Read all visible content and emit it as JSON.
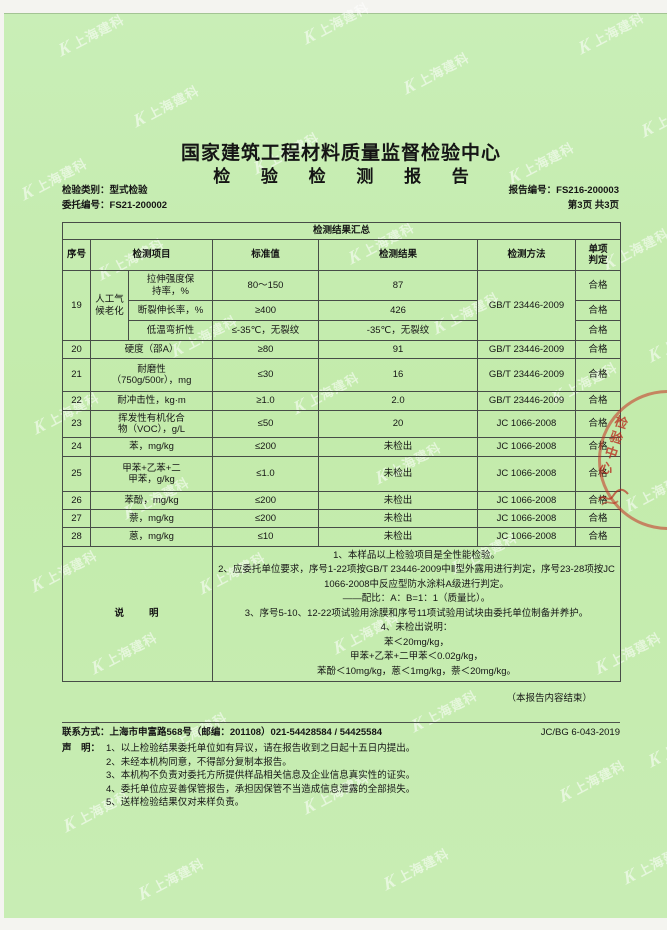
{
  "watermark": {
    "logo": "K",
    "text": "上海建科"
  },
  "header": {
    "org": "国家建筑工程材料质量监督检验中心",
    "doc_title": "检 验 检 测 报 告",
    "category_label": "检验类别：",
    "category": "型式检验",
    "client_no_label": "委托编号：",
    "client_no": "FS21-200002",
    "report_no_label": "报告编号：",
    "report_no": "FS216-200003",
    "page": "第3页 共3页"
  },
  "table": {
    "title": "检测结果汇总",
    "columns": [
      "序号",
      "检测项目",
      "标准值",
      "检测结果",
      "检测方法",
      "单项\n判定"
    ],
    "rows": [
      {
        "no": "19",
        "group": "人工气\n候老化",
        "item": "拉伸强度保\n持率，%",
        "std": "80～150",
        "res": "87",
        "method": "GB/T 23446-2009",
        "judge": "合格"
      },
      {
        "item": "断裂伸长率，%",
        "std": "≥400",
        "res": "426",
        "judge": "合格"
      },
      {
        "item": "低温弯折性",
        "std": "≤-35℃，无裂纹",
        "res": "-35℃，无裂纹",
        "judge": "合格"
      },
      {
        "no": "20",
        "item": "硬度（邵A）",
        "std": "≥80",
        "res": "91",
        "method": "GB/T 23446-2009",
        "judge": "合格"
      },
      {
        "no": "21",
        "item": "耐磨性\n（750g/500r），mg",
        "std": "≤30",
        "res": "16",
        "method": "GB/T 23446-2009",
        "judge": "合格"
      },
      {
        "no": "22",
        "item": "耐冲击性，kg·m",
        "std": "≥1.0",
        "res": "2.0",
        "method": "GB/T 23446-2009",
        "judge": "合格"
      },
      {
        "no": "23",
        "item": "挥发性有机化合\n物（VOC），g/L",
        "std": "≤50",
        "res": "20",
        "method": "JC 1066-2008",
        "judge": "合格"
      },
      {
        "no": "24",
        "item": "苯，mg/kg",
        "std": "≤200",
        "res": "未检出",
        "method": "JC 1066-2008",
        "judge": "合格"
      },
      {
        "no": "25",
        "item": "甲苯+乙苯+二\n甲苯，g/kg",
        "std": "≤1.0",
        "res": "未检出",
        "method": "JC 1066-2008",
        "judge": "合格"
      },
      {
        "no": "26",
        "item": "苯酚，mg/kg",
        "std": "≤200",
        "res": "未检出",
        "method": "JC 1066-2008",
        "judge": "合格"
      },
      {
        "no": "27",
        "item": "萘，mg/kg",
        "std": "≤200",
        "res": "未检出",
        "method": "JC 1066-2008",
        "judge": "合格"
      },
      {
        "no": "28",
        "item": "蒽，mg/kg",
        "std": "≤10",
        "res": "未检出",
        "method": "JC 1066-2008",
        "judge": "合格"
      }
    ],
    "note_label": "说　　明",
    "notes": "1、本样品以上检验项目是全性能检验。\n2、应委托单位要求，序号1-22项按GB/T 23446-2009中Ⅱ型外露用进行判定，序号23-28项按JC 1066-2008中反应型防水涂料A级进行判定。\n——配比：A：B=1：1（质量比）。\n3、序号5-10、12-22项试验用涂膜和序号11项试验用试块由委托单位制备并养护。\n4、未检出说明：\n苯＜20mg/kg，\n甲苯+乙苯+二甲苯＜0.02g/kg，\n苯酚＜10mg/kg，蒽＜1mg/kg，萘＜20mg/kg。"
  },
  "footer": {
    "end_note": "（本报告内容结束）",
    "contact_label": "联系方式：",
    "contact": "上海市申富路568号（邮编：201108）021-54428584 / 54425584",
    "doc_code": "JC/BG 6-043-2019",
    "statement_label": "声　明：",
    "statements": "1、以上检验结果委托单位如有异议，请在报告收到之日起十五日内提出。\n2、未经本机构同意，不得部分复制本报告。\n3、本机构不负责对委托方所提供样品相关信息及企业信息真实性的证实。\n4、委托单位应妥善保管报告，承担因保管不当造成信息泄露的全部损失。\n5、送样检验结果仅对来样负责。"
  },
  "stamp": {
    "text": "检验中心"
  }
}
